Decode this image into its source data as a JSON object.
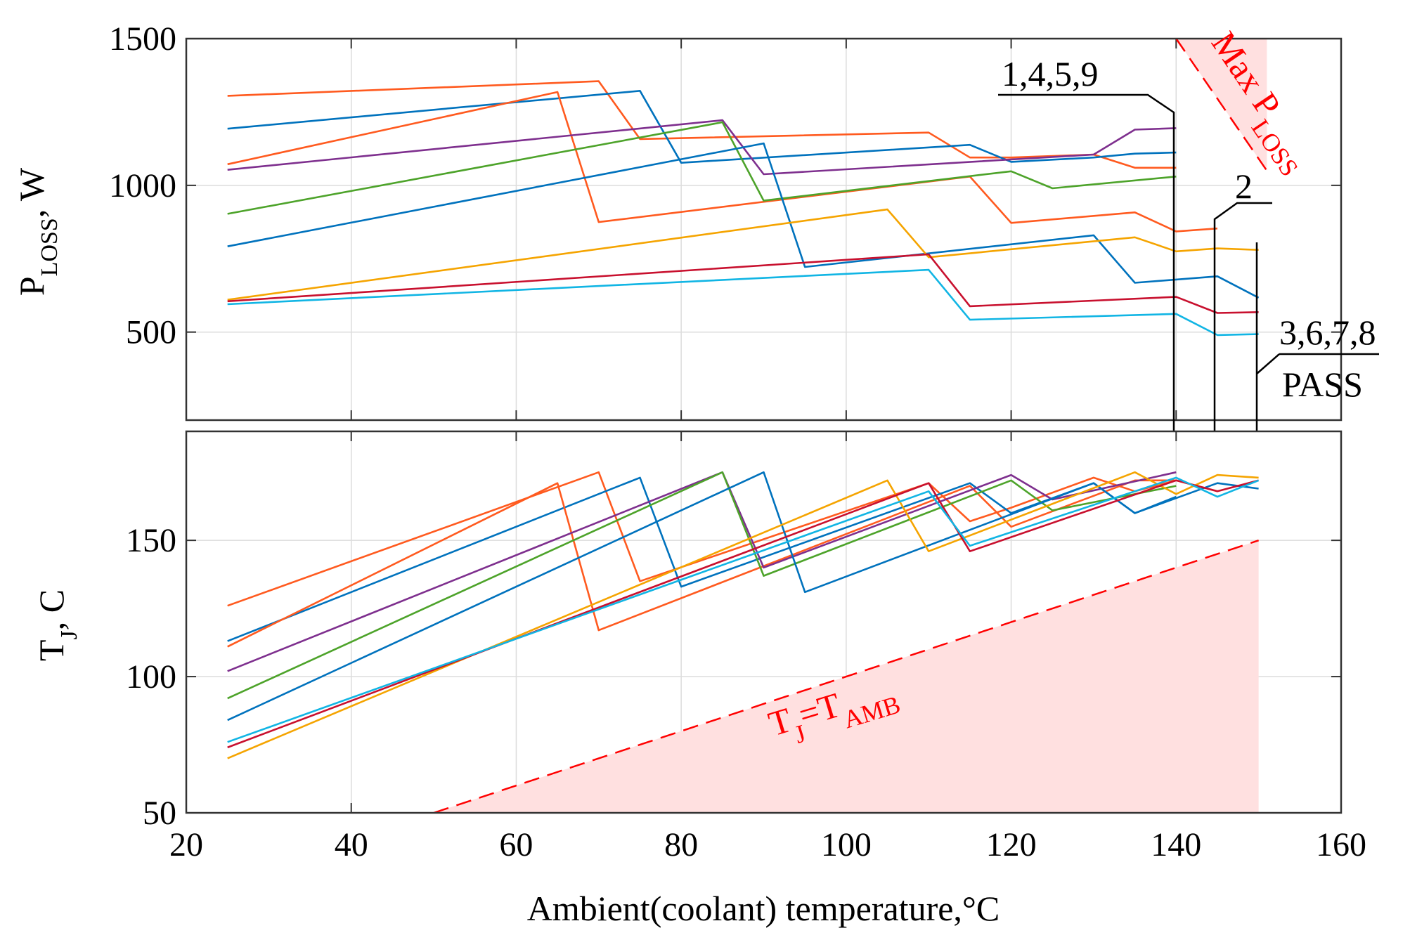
{
  "chart_data": [
    {
      "type": "line",
      "panel": "top",
      "ylabel_main": "P",
      "ylabel_sub": "LOSS",
      "ylabel_tail": ", W",
      "xlim": [
        20,
        160
      ],
      "ylim": [
        200,
        1500
      ],
      "yticks": [
        500,
        1000,
        1500
      ],
      "grid": true,
      "annotations": {
        "label_1459": "1,4,5,9",
        "label_2": "2",
        "label_3678": "3,6,7,8",
        "label_pass": "PASS",
        "max_main": "Max P",
        "max_sub": "LOSS"
      },
      "max_ploss_boundary": {
        "x": [
          140,
          151
        ],
        "y": [
          1500,
          1050
        ]
      },
      "series": [
        {
          "color": "#ff5a1f",
          "x": [
            25,
            70,
            75,
            110,
            115,
            120,
            130,
            135,
            140
          ],
          "y": [
            1305,
            1355,
            1158,
            1180,
            1095,
            1095,
            1105,
            1060,
            1060
          ]
        },
        {
          "color": "#0072bd",
          "x": [
            25,
            75,
            80,
            115,
            120,
            130,
            135,
            140
          ],
          "y": [
            1193,
            1322,
            1077,
            1138,
            1080,
            1095,
            1108,
            1112
          ]
        },
        {
          "color": "#ff5a1f",
          "x": [
            25,
            65,
            70,
            115,
            120,
            135,
            140,
            145
          ],
          "y": [
            1072,
            1318,
            875,
            1030,
            872,
            908,
            843,
            853
          ]
        },
        {
          "color": "#7e2f8e",
          "x": [
            25,
            85,
            90,
            130,
            135,
            140
          ],
          "y": [
            1053,
            1222,
            1038,
            1105,
            1190,
            1195
          ]
        },
        {
          "color": "#4da32a",
          "x": [
            25,
            85,
            90,
            120,
            125,
            140
          ],
          "y": [
            903,
            1215,
            948,
            1048,
            990,
            1030
          ]
        },
        {
          "color": "#0072bd",
          "x": [
            25,
            90,
            95,
            130,
            135,
            145,
            150
          ],
          "y": [
            792,
            1143,
            722,
            830,
            668,
            690,
            617
          ]
        },
        {
          "color": "#f5a400",
          "x": [
            25,
            105,
            110,
            135,
            140,
            145,
            150
          ],
          "y": [
            610,
            918,
            755,
            823,
            775,
            785,
            780
          ]
        },
        {
          "color": "#c8102e",
          "x": [
            25,
            110,
            115,
            140,
            145,
            150
          ],
          "y": [
            605,
            765,
            588,
            620,
            565,
            568
          ]
        },
        {
          "color": "#11b5e4",
          "x": [
            25,
            110,
            115,
            140,
            145,
            150
          ],
          "y": [
            595,
            712,
            542,
            562,
            490,
            493
          ]
        }
      ]
    },
    {
      "type": "line",
      "panel": "bottom",
      "xlabel": "Ambient(coolant) temperature,°C",
      "ylabel_main": "T",
      "ylabel_sub": "J",
      "ylabel_tail": ", C",
      "xlim": [
        20,
        160
      ],
      "ylim": [
        50,
        190
      ],
      "xticks": [
        20,
        40,
        60,
        80,
        100,
        120,
        140,
        160
      ],
      "yticks": [
        50,
        100,
        150
      ],
      "grid": true,
      "annotations": {
        "tj_main": "T",
        "tj_sub": "J",
        "tj_eq": "=T",
        "tj_sub2": "AMB"
      },
      "ambient_line": {
        "x": [
          50,
          150
        ],
        "y": [
          50,
          150
        ]
      },
      "series": [
        {
          "color": "#ff5a1f",
          "x": [
            25,
            70,
            75,
            110,
            115,
            120,
            130,
            135,
            140
          ],
          "y": [
            126,
            175,
            135,
            171,
            157,
            162,
            173,
            168,
            172
          ]
        },
        {
          "color": "#0072bd",
          "x": [
            25,
            75,
            80,
            115,
            120,
            130,
            135,
            140
          ],
          "y": [
            113,
            173,
            133,
            171,
            160,
            171,
            160,
            166
          ]
        },
        {
          "color": "#ff5a1f",
          "x": [
            25,
            65,
            70,
            115,
            120,
            135,
            140,
            145
          ],
          "y": [
            111,
            171,
            117,
            170,
            155,
            172,
            172,
            168
          ]
        },
        {
          "color": "#7e2f8e",
          "x": [
            25,
            85,
            90,
            120,
            125,
            140
          ],
          "y": [
            102,
            175,
            140,
            174,
            165,
            175
          ]
        },
        {
          "color": "#4da32a",
          "x": [
            25,
            85,
            90,
            120,
            125,
            140
          ],
          "y": [
            92,
            175,
            137,
            172,
            161,
            170
          ]
        },
        {
          "color": "#0072bd",
          "x": [
            25,
            90,
            95,
            130,
            135,
            145,
            150
          ],
          "y": [
            84,
            175,
            131,
            171,
            160,
            171,
            169
          ]
        },
        {
          "color": "#f5a400",
          "x": [
            25,
            105,
            110,
            135,
            140,
            145,
            150
          ],
          "y": [
            70,
            172,
            146,
            175,
            167,
            174,
            173
          ]
        },
        {
          "color": "#c8102e",
          "x": [
            25,
            110,
            115,
            140,
            145,
            150
          ],
          "y": [
            74,
            171,
            146,
            172,
            168,
            172
          ]
        },
        {
          "color": "#11b5e4",
          "x": [
            25,
            110,
            115,
            140,
            145,
            150
          ],
          "y": [
            76,
            168,
            148,
            173,
            166,
            172
          ]
        }
      ]
    }
  ]
}
